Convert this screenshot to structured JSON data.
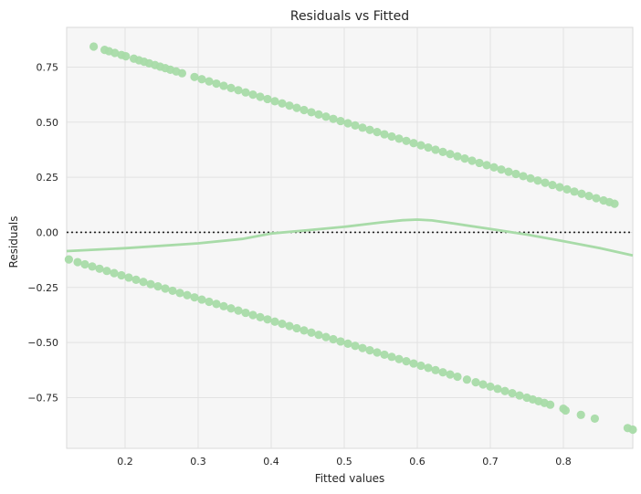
{
  "chart_data": {
    "type": "scatter",
    "title": "Residuals vs Fitted",
    "xlabel": "Fitted values",
    "ylabel": "Residuals",
    "xlim": [
      0.12,
      0.895
    ],
    "ylim": [
      -0.98,
      0.93
    ],
    "xticks": [
      0.2,
      0.3,
      0.4,
      0.5,
      0.6,
      0.7,
      0.8
    ],
    "xtick_labels": [
      "0.2",
      "0.3",
      "0.4",
      "0.5",
      "0.6",
      "0.7",
      "0.8"
    ],
    "yticks": [
      0.75,
      0.5,
      0.25,
      0.0,
      -0.25,
      -0.5,
      -0.75
    ],
    "ytick_labels": [
      "0.75",
      "0.50",
      "0.25",
      "0.00",
      "−0.25",
      "−0.50",
      "−0.75"
    ],
    "grid": true,
    "reference_line": {
      "y": 0.0,
      "style": "dotted"
    },
    "point_color": "#a8dba8",
    "line_color": "#a8dba8",
    "background_color": "#f6f6f6",
    "series": [
      {
        "type": "scatter",
        "x": [
          0.157,
          0.172,
          0.178,
          0.186,
          0.195,
          0.201,
          0.212,
          0.219,
          0.226,
          0.233,
          0.241,
          0.248,
          0.255,
          0.262,
          0.27,
          0.278,
          0.295,
          0.305,
          0.315,
          0.325,
          0.335,
          0.345,
          0.355,
          0.365,
          0.375,
          0.385,
          0.395,
          0.405,
          0.415,
          0.425,
          0.435,
          0.445,
          0.455,
          0.465,
          0.475,
          0.485,
          0.495,
          0.505,
          0.515,
          0.525,
          0.535,
          0.545,
          0.555,
          0.565,
          0.575,
          0.585,
          0.595,
          0.605,
          0.615,
          0.625,
          0.635,
          0.645,
          0.655,
          0.665,
          0.675,
          0.685,
          0.695,
          0.705,
          0.715,
          0.725,
          0.735,
          0.745,
          0.755,
          0.765,
          0.775,
          0.785,
          0.795,
          0.805,
          0.815,
          0.825,
          0.835,
          0.845,
          0.855,
          0.863,
          0.87,
          0.123,
          0.135,
          0.145,
          0.155,
          0.165,
          0.175,
          0.185,
          0.195,
          0.205,
          0.215,
          0.225,
          0.235,
          0.245,
          0.255,
          0.265,
          0.275,
          0.285,
          0.295,
          0.305,
          0.315,
          0.325,
          0.335,
          0.345,
          0.355,
          0.365,
          0.375,
          0.385,
          0.395,
          0.405,
          0.415,
          0.425,
          0.435,
          0.445,
          0.455,
          0.465,
          0.475,
          0.485,
          0.495,
          0.505,
          0.515,
          0.525,
          0.535,
          0.545,
          0.555,
          0.565,
          0.575,
          0.585,
          0.595,
          0.605,
          0.615,
          0.625,
          0.635,
          0.645,
          0.655,
          0.668,
          0.68,
          0.69,
          0.7,
          0.71,
          0.72,
          0.73,
          0.74,
          0.75,
          0.758,
          0.766,
          0.774,
          0.782,
          0.8,
          0.803,
          0.824,
          0.843,
          0.888,
          0.895
        ],
        "y": [
          0.843,
          0.828,
          0.822,
          0.814,
          0.805,
          0.799,
          0.788,
          0.781,
          0.774,
          0.767,
          0.759,
          0.752,
          0.745,
          0.738,
          0.73,
          0.722,
          0.705,
          0.695,
          0.685,
          0.675,
          0.665,
          0.655,
          0.645,
          0.635,
          0.625,
          0.615,
          0.605,
          0.595,
          0.585,
          0.575,
          0.565,
          0.555,
          0.545,
          0.535,
          0.525,
          0.515,
          0.505,
          0.495,
          0.485,
          0.475,
          0.465,
          0.455,
          0.445,
          0.435,
          0.425,
          0.415,
          0.405,
          0.395,
          0.385,
          0.375,
          0.365,
          0.355,
          0.345,
          0.335,
          0.325,
          0.315,
          0.305,
          0.295,
          0.285,
          0.275,
          0.265,
          0.255,
          0.245,
          0.235,
          0.225,
          0.215,
          0.205,
          0.195,
          0.185,
          0.175,
          0.165,
          0.155,
          0.145,
          0.137,
          0.13,
          -0.123,
          -0.135,
          -0.145,
          -0.155,
          -0.165,
          -0.175,
          -0.185,
          -0.195,
          -0.205,
          -0.215,
          -0.225,
          -0.235,
          -0.245,
          -0.255,
          -0.265,
          -0.275,
          -0.285,
          -0.295,
          -0.305,
          -0.315,
          -0.325,
          -0.335,
          -0.345,
          -0.355,
          -0.365,
          -0.375,
          -0.385,
          -0.395,
          -0.405,
          -0.415,
          -0.425,
          -0.435,
          -0.445,
          -0.455,
          -0.465,
          -0.475,
          -0.485,
          -0.495,
          -0.505,
          -0.515,
          -0.525,
          -0.535,
          -0.545,
          -0.555,
          -0.565,
          -0.575,
          -0.585,
          -0.595,
          -0.605,
          -0.615,
          -0.625,
          -0.635,
          -0.645,
          -0.655,
          -0.668,
          -0.68,
          -0.69,
          -0.7,
          -0.71,
          -0.72,
          -0.73,
          -0.74,
          -0.75,
          -0.758,
          -0.766,
          -0.774,
          -0.782,
          -0.8,
          -0.808,
          -0.828,
          -0.845,
          -0.888,
          -0.895
        ]
      },
      {
        "type": "line",
        "x": [
          0.12,
          0.2,
          0.3,
          0.36,
          0.4,
          0.45,
          0.5,
          0.55,
          0.58,
          0.6,
          0.62,
          0.65,
          0.7,
          0.75,
          0.8,
          0.85,
          0.895
        ],
        "y": [
          -0.085,
          -0.072,
          -0.05,
          -0.03,
          -0.005,
          0.01,
          0.025,
          0.045,
          0.055,
          0.058,
          0.054,
          0.04,
          0.015,
          -0.01,
          -0.04,
          -0.072,
          -0.105
        ]
      }
    ]
  }
}
